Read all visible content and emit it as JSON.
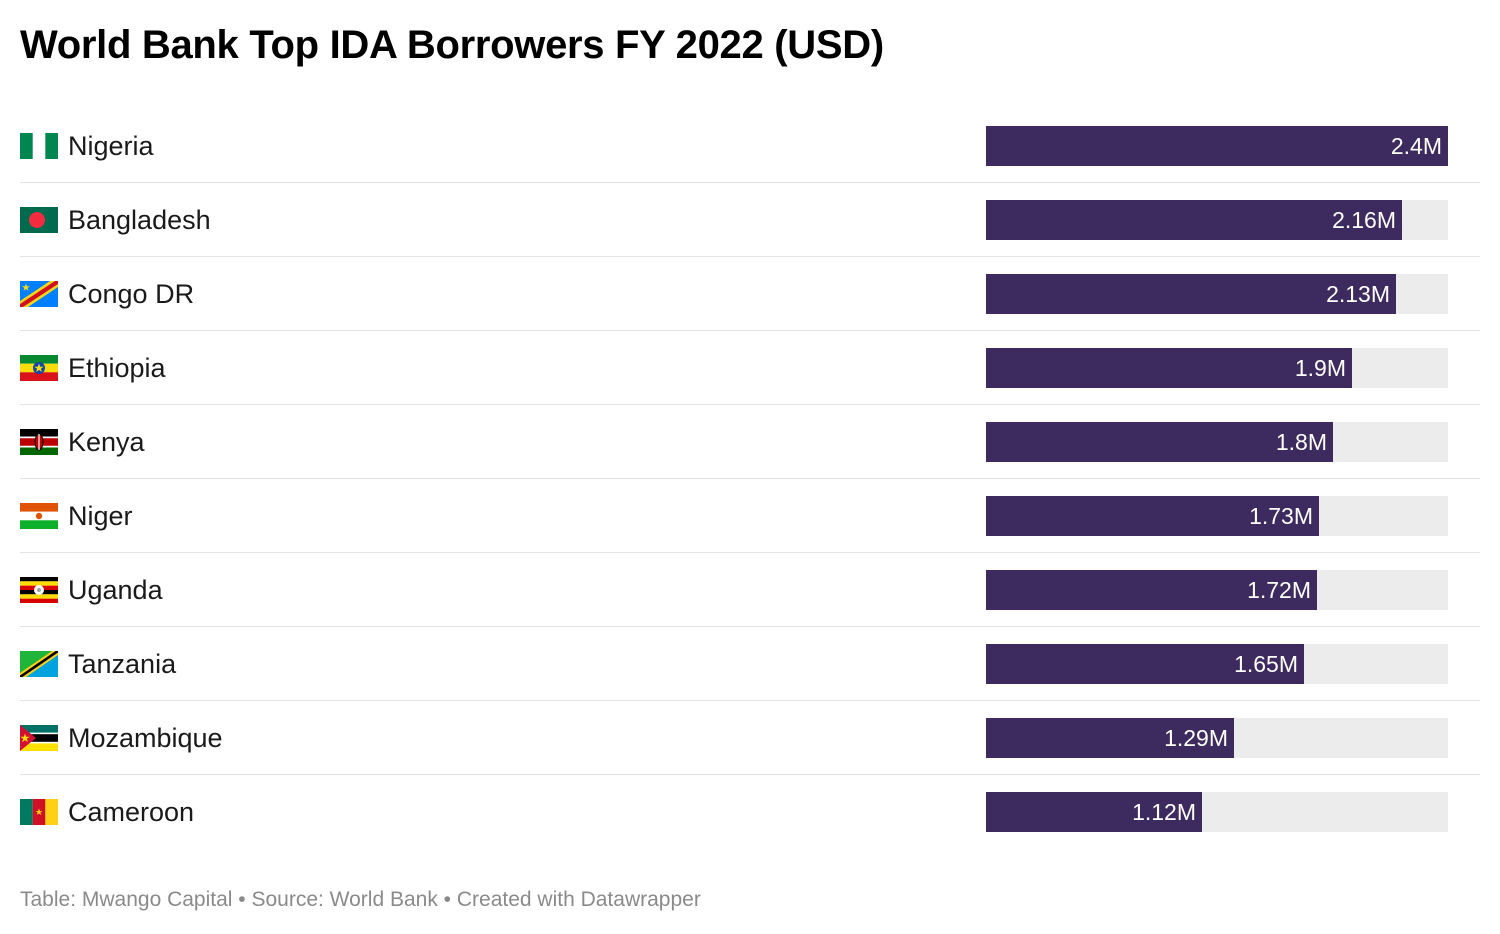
{
  "title": "World Bank Top IDA Borrowers FY 2022 (USD)",
  "footer": {
    "text": "Table: Mwango Capital • Source: World Bank • Created with Datawrapper"
  },
  "colors": {
    "bar": "#3d2a5e",
    "track": "#ececec",
    "bar_label": "#ffffff"
  },
  "chart_data": {
    "type": "table",
    "title": "World Bank Top IDA Borrowers FY 2022 (USD)",
    "xlim": [
      0,
      2.4
    ],
    "bar_max": 2.4,
    "rows": [
      {
        "country": "Nigeria",
        "flag": "nigeria-flag-icon",
        "value": 2.4,
        "label": "2.4M"
      },
      {
        "country": "Bangladesh",
        "flag": "bangladesh-flag-icon",
        "value": 2.16,
        "label": "2.16M"
      },
      {
        "country": "Congo DR",
        "flag": "congo-dr-flag-icon",
        "value": 2.13,
        "label": "2.13M"
      },
      {
        "country": "Ethiopia",
        "flag": "ethiopia-flag-icon",
        "value": 1.9,
        "label": "1.9M"
      },
      {
        "country": "Kenya",
        "flag": "kenya-flag-icon",
        "value": 1.8,
        "label": "1.8M"
      },
      {
        "country": "Niger",
        "flag": "niger-flag-icon",
        "value": 1.73,
        "label": "1.73M"
      },
      {
        "country": "Uganda",
        "flag": "uganda-flag-icon",
        "value": 1.72,
        "label": "1.72M"
      },
      {
        "country": "Tanzania",
        "flag": "tanzania-flag-icon",
        "value": 1.65,
        "label": "1.65M"
      },
      {
        "country": "Mozambique",
        "flag": "mozambique-flag-icon",
        "value": 1.29,
        "label": "1.29M"
      },
      {
        "country": "Cameroon",
        "flag": "cameroon-flag-icon",
        "value": 1.12,
        "label": "1.12M"
      }
    ]
  }
}
